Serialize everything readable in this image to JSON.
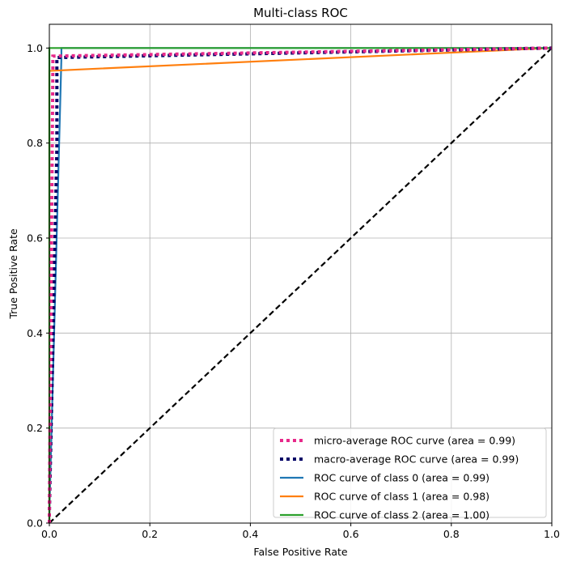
{
  "chart_data": {
    "type": "line",
    "title": "Multi-class ROC",
    "xlabel": "False Positive Rate",
    "ylabel": "True Positive Rate",
    "xlim": [
      0,
      1
    ],
    "ylim": [
      0,
      1.05
    ],
    "xticks": [
      0.0,
      0.2,
      0.4,
      0.6,
      0.8,
      1.0
    ],
    "yticks": [
      0.0,
      0.2,
      0.4,
      0.6,
      0.8,
      1.0
    ],
    "xtick_labels": [
      "0.0",
      "0.2",
      "0.4",
      "0.6",
      "0.8",
      "1.0"
    ],
    "ytick_labels": [
      "0.0",
      "0.2",
      "0.4",
      "0.6",
      "0.8",
      "1.0"
    ],
    "grid": true,
    "legend_position": "lower-right",
    "series": [
      {
        "name": "micro-average ROC curve (area = 0.99)",
        "color": "#e7298a",
        "style": "dotted",
        "x": [
          0.0,
          0.0,
          0.007,
          0.007,
          1.0
        ],
        "y": [
          0.0,
          0.02,
          0.96,
          0.983,
          1.0
        ]
      },
      {
        "name": "macro-average ROC curve (area = 0.99)",
        "color": "#000066",
        "style": "dotted",
        "x": [
          0.0,
          0.0,
          0.015,
          0.015,
          1.0
        ],
        "y": [
          0.0,
          0.02,
          0.79,
          0.98,
          1.0
        ]
      },
      {
        "name": "ROC curve of class 0 (area = 0.99)",
        "color": "#1f77b4",
        "style": "solid",
        "x": [
          0.0,
          0.0,
          0.024,
          0.024,
          1.0
        ],
        "y": [
          0.0,
          0.02,
          0.98,
          1.0,
          1.0
        ]
      },
      {
        "name": "ROC curve of class 1 (area = 0.98)",
        "color": "#ff7f0e",
        "style": "solid",
        "x": [
          0.0,
          0.0,
          1.0
        ],
        "y": [
          0.0,
          0.952,
          1.0
        ]
      },
      {
        "name": "ROC curve of class 2 (area = 1.00)",
        "color": "#2ca02c",
        "style": "solid",
        "x": [
          0.0,
          0.0,
          1.0
        ],
        "y": [
          0.0,
          1.0,
          1.0
        ]
      }
    ],
    "reference_line": {
      "color": "#000000",
      "style": "dashed",
      "x": [
        0,
        1
      ],
      "y": [
        0,
        1
      ]
    }
  }
}
